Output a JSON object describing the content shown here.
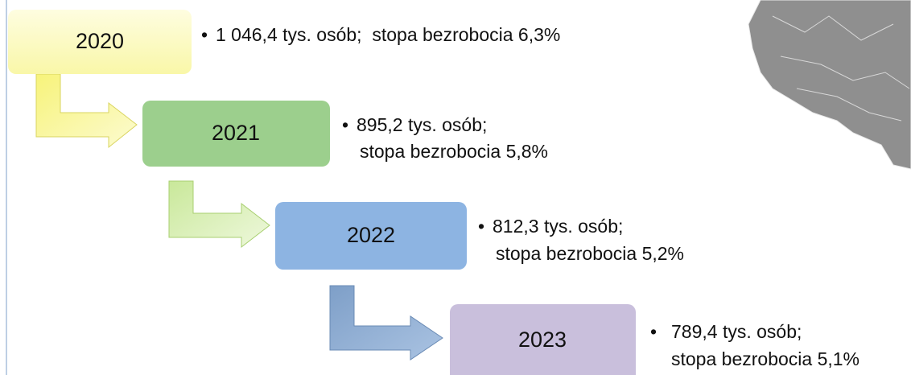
{
  "steps": [
    {
      "year": "2020",
      "lines": [
        "1 046,4 tys. osób;  stopa bezrobocia 6,3%"
      ]
    },
    {
      "year": "2021",
      "lines": [
        "895,2 tys. osób;",
        "stopa bezrobocia 5,8%"
      ]
    },
    {
      "year": "2022",
      "lines": [
        "812,3 tys. osób;",
        "stopa bezrobocia 5,2%"
      ]
    },
    {
      "year": "2023",
      "lines": [
        "789,4 tys. osób;",
        "stopa bezrobocia 5,1%"
      ]
    }
  ]
}
